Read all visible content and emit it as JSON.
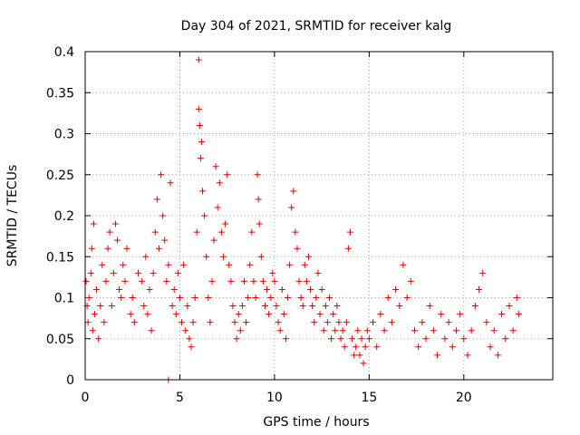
{
  "chart_data": {
    "type": "scatter",
    "title": "Day 304 of 2021, SRMTID for receiver kalg",
    "xlabel": "GPS time / hours",
    "ylabel": "SRMTID / TECUs",
    "xlim": [
      0,
      24.7
    ],
    "ylim": [
      0,
      0.4
    ],
    "grid": true,
    "marker": "+",
    "color": "#e00000",
    "xticks": [
      0,
      5,
      10,
      15,
      20
    ],
    "xtick_labels": [
      "0",
      "5",
      "10",
      "15",
      "20"
    ],
    "yticks": [
      0,
      0.05,
      0.1,
      0.15,
      0.2,
      0.25,
      0.3,
      0.35,
      0.4
    ],
    "ytick_labels": [
      "0",
      "0.05",
      "0.1",
      "0.15",
      "0.2",
      "0.25",
      "0.3",
      "0.35",
      "0.4"
    ],
    "series": [
      {
        "name": "SRMTID",
        "points": [
          [
            0.05,
            0.12
          ],
          [
            0.1,
            0.09
          ],
          [
            0.15,
            0.07
          ],
          [
            0.2,
            0.1
          ],
          [
            0.3,
            0.13
          ],
          [
            0.35,
            0.16
          ],
          [
            0.4,
            0.06
          ],
          [
            0.45,
            0.19
          ],
          [
            0.5,
            0.08
          ],
          [
            0.6,
            0.11
          ],
          [
            0.7,
            0.05
          ],
          [
            0.8,
            0.09
          ],
          [
            0.9,
            0.14
          ],
          [
            1.0,
            0.07
          ],
          [
            1.1,
            0.12
          ],
          [
            1.2,
            0.16
          ],
          [
            1.3,
            0.18
          ],
          [
            1.4,
            0.09
          ],
          [
            1.5,
            0.13
          ],
          [
            1.6,
            0.19
          ],
          [
            1.7,
            0.17
          ],
          [
            1.8,
            0.11
          ],
          [
            1.9,
            0.1
          ],
          [
            2.0,
            0.14
          ],
          [
            2.1,
            0.12
          ],
          [
            2.2,
            0.16
          ],
          [
            2.4,
            0.08
          ],
          [
            2.5,
            0.1
          ],
          [
            2.6,
            0.07
          ],
          [
            2.8,
            0.13
          ],
          [
            3.0,
            0.12
          ],
          [
            3.1,
            0.09
          ],
          [
            3.2,
            0.15
          ],
          [
            3.3,
            0.08
          ],
          [
            3.4,
            0.11
          ],
          [
            3.5,
            0.06
          ],
          [
            3.6,
            0.13
          ],
          [
            3.7,
            0.18
          ],
          [
            3.8,
            0.22
          ],
          [
            3.9,
            0.16
          ],
          [
            4.0,
            0.25
          ],
          [
            4.1,
            0.2
          ],
          [
            4.2,
            0.17
          ],
          [
            4.3,
            0.12
          ],
          [
            4.4,
            0.14
          ],
          [
            4.5,
            0.24
          ],
          [
            4.6,
            0.09
          ],
          [
            4.7,
            0.11
          ],
          [
            4.8,
            0.08
          ],
          [
            4.9,
            0.13
          ],
          [
            5.0,
            0.1
          ],
          [
            5.1,
            0.07
          ],
          [
            5.2,
            0.14
          ],
          [
            5.3,
            0.06
          ],
          [
            5.4,
            0.09
          ],
          [
            5.5,
            0.05
          ],
          [
            5.6,
            0.04
          ],
          [
            5.7,
            0.07
          ],
          [
            5.8,
            0.1
          ],
          [
            5.9,
            0.18
          ],
          [
            6.0,
            0.39
          ],
          [
            6.0,
            0.33
          ],
          [
            6.05,
            0.31
          ],
          [
            6.1,
            0.27
          ],
          [
            6.15,
            0.29
          ],
          [
            6.2,
            0.23
          ],
          [
            6.3,
            0.2
          ],
          [
            6.4,
            0.15
          ],
          [
            6.5,
            0.1
          ],
          [
            6.6,
            0.07
          ],
          [
            6.7,
            0.12
          ],
          [
            6.8,
            0.17
          ],
          [
            6.9,
            0.26
          ],
          [
            7.0,
            0.21
          ],
          [
            7.1,
            0.24
          ],
          [
            7.2,
            0.18
          ],
          [
            7.3,
            0.15
          ],
          [
            7.4,
            0.19
          ],
          [
            7.5,
            0.25
          ],
          [
            7.6,
            0.14
          ],
          [
            7.7,
            0.12
          ],
          [
            7.8,
            0.09
          ],
          [
            7.9,
            0.07
          ],
          [
            8.0,
            0.05
          ],
          [
            8.1,
            0.08
          ],
          [
            8.2,
            0.06
          ],
          [
            8.3,
            0.09
          ],
          [
            8.4,
            0.12
          ],
          [
            8.5,
            0.07
          ],
          [
            8.6,
            0.1
          ],
          [
            8.7,
            0.14
          ],
          [
            8.8,
            0.18
          ],
          [
            8.9,
            0.12
          ],
          [
            9.0,
            0.1
          ],
          [
            9.1,
            0.25
          ],
          [
            9.15,
            0.22
          ],
          [
            9.2,
            0.19
          ],
          [
            9.3,
            0.15
          ],
          [
            9.4,
            0.12
          ],
          [
            9.5,
            0.09
          ],
          [
            9.6,
            0.11
          ],
          [
            9.7,
            0.08
          ],
          [
            9.8,
            0.1
          ],
          [
            9.9,
            0.13
          ],
          [
            10.0,
            0.12
          ],
          [
            10.1,
            0.09
          ],
          [
            10.2,
            0.07
          ],
          [
            10.3,
            0.06
          ],
          [
            10.4,
            0.11
          ],
          [
            10.5,
            0.08
          ],
          [
            10.6,
            0.05
          ],
          [
            10.7,
            0.1
          ],
          [
            10.8,
            0.14
          ],
          [
            10.9,
            0.21
          ],
          [
            11.0,
            0.23
          ],
          [
            11.1,
            0.18
          ],
          [
            11.2,
            0.16
          ],
          [
            11.3,
            0.12
          ],
          [
            11.4,
            0.1
          ],
          [
            11.5,
            0.09
          ],
          [
            11.6,
            0.14
          ],
          [
            11.7,
            0.12
          ],
          [
            11.8,
            0.15
          ],
          [
            11.9,
            0.11
          ],
          [
            12.0,
            0.09
          ],
          [
            12.1,
            0.07
          ],
          [
            12.2,
            0.1
          ],
          [
            12.3,
            0.13
          ],
          [
            12.4,
            0.08
          ],
          [
            12.5,
            0.11
          ],
          [
            12.6,
            0.06
          ],
          [
            12.7,
            0.09
          ],
          [
            12.8,
            0.07
          ],
          [
            12.9,
            0.1
          ],
          [
            13.0,
            0.05
          ],
          [
            13.1,
            0.08
          ],
          [
            13.2,
            0.06
          ],
          [
            13.3,
            0.09
          ],
          [
            13.4,
            0.07
          ],
          [
            13.5,
            0.05
          ],
          [
            13.6,
            0.06
          ],
          [
            13.7,
            0.04
          ],
          [
            13.8,
            0.07
          ],
          [
            13.9,
            0.16
          ],
          [
            14.0,
            0.18
          ],
          [
            14.1,
            0.05
          ],
          [
            14.2,
            0.03
          ],
          [
            14.3,
            0.04
          ],
          [
            14.4,
            0.06
          ],
          [
            14.5,
            0.03
          ],
          [
            14.6,
            0.05
          ],
          [
            14.7,
            0.02
          ],
          [
            14.8,
            0.04
          ],
          [
            14.9,
            0.06
          ],
          [
            15.0,
            0.05
          ],
          [
            15.2,
            0.07
          ],
          [
            15.4,
            0.04
          ],
          [
            15.6,
            0.08
          ],
          [
            15.8,
            0.06
          ],
          [
            16.0,
            0.1
          ],
          [
            16.2,
            0.07
          ],
          [
            16.4,
            0.11
          ],
          [
            16.6,
            0.09
          ],
          [
            16.8,
            0.14
          ],
          [
            17.0,
            0.1
          ],
          [
            17.2,
            0.12
          ],
          [
            17.4,
            0.06
          ],
          [
            17.6,
            0.04
          ],
          [
            17.8,
            0.07
          ],
          [
            18.0,
            0.05
          ],
          [
            18.2,
            0.09
          ],
          [
            18.4,
            0.06
          ],
          [
            18.6,
            0.03
          ],
          [
            18.8,
            0.08
          ],
          [
            19.0,
            0.05
          ],
          [
            19.2,
            0.07
          ],
          [
            19.4,
            0.04
          ],
          [
            19.6,
            0.06
          ],
          [
            19.8,
            0.08
          ],
          [
            20.0,
            0.05
          ],
          [
            20.2,
            0.03
          ],
          [
            20.4,
            0.06
          ],
          [
            20.6,
            0.09
          ],
          [
            20.8,
            0.11
          ],
          [
            21.0,
            0.13
          ],
          [
            21.2,
            0.07
          ],
          [
            21.4,
            0.04
          ],
          [
            21.6,
            0.06
          ],
          [
            21.8,
            0.03
          ],
          [
            22.0,
            0.08
          ],
          [
            22.2,
            0.05
          ],
          [
            22.4,
            0.09
          ],
          [
            22.6,
            0.06
          ],
          [
            22.8,
            0.1
          ],
          [
            22.9,
            0.08
          ],
          [
            4.4,
            0.0
          ]
        ]
      }
    ]
  }
}
